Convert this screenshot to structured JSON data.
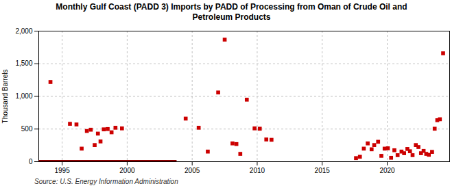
{
  "chart_data": {
    "type": "scatter",
    "title": "Monthly Gulf Coast (PADD 3) Imports by PADD of Processing from Oman of Crude Oil and\nPetroleum Products",
    "ylabel": "Thousand Barrels",
    "annotations": [
      "Source: U.S. Energy Information Administration"
    ],
    "xlim": [
      1993.2,
      2024.8
    ],
    "ylim": [
      0,
      2000
    ],
    "xticks": [
      1995,
      2000,
      2005,
      2010,
      2015,
      2020
    ],
    "yticks": [
      0,
      500,
      {
        "value": 1000,
        "label": "1,000"
      },
      {
        "value": 1500,
        "label": "1,500"
      },
      {
        "value": 2000,
        "label": "2,000"
      }
    ],
    "grid": true,
    "series": [
      {
        "type": "line",
        "color": "#8b0000",
        "x": [
          1993.2,
          2003.8
        ],
        "values": [
          2,
          2
        ]
      },
      {
        "type": "scatter",
        "marker": "square",
        "color": "#cc0000",
        "x": [
          1994.1,
          1995.6,
          1996.1,
          1996.5,
          1996.9,
          1997.2,
          1997.5,
          1997.75,
          1997.95,
          1998.2,
          1998.5,
          1998.8,
          1999.1,
          1999.6,
          2004.5,
          2005.5,
          2006.2,
          2007.0,
          2007.5,
          2008.1,
          2008.4,
          2008.7,
          2009.2,
          2009.8,
          2010.2,
          2010.7,
          2011.1,
          2017.6,
          2017.9,
          2018.2,
          2018.5,
          2018.8,
          2019.0,
          2019.3,
          2019.55,
          2019.8,
          2020.05,
          2020.3,
          2020.55,
          2020.8,
          2021.1,
          2021.3,
          2021.55,
          2021.75,
          2021.95,
          2022.2,
          2022.4,
          2022.6,
          2022.8,
          2023.0,
          2023.2,
          2023.45,
          2023.65,
          2023.85,
          2024.05,
          2024.3
        ],
        "values": [
          1220,
          580,
          570,
          200,
          470,
          490,
          255,
          430,
          310,
          495,
          500,
          450,
          520,
          510,
          660,
          520,
          155,
          1060,
          1870,
          280,
          270,
          120,
          950,
          510,
          505,
          340,
          335,
          55,
          75,
          200,
          280,
          190,
          255,
          305,
          90,
          200,
          205,
          60,
          175,
          100,
          155,
          130,
          195,
          160,
          100,
          255,
          225,
          130,
          165,
          120,
          105,
          150,
          505,
          635,
          650,
          1660
        ]
      }
    ]
  }
}
